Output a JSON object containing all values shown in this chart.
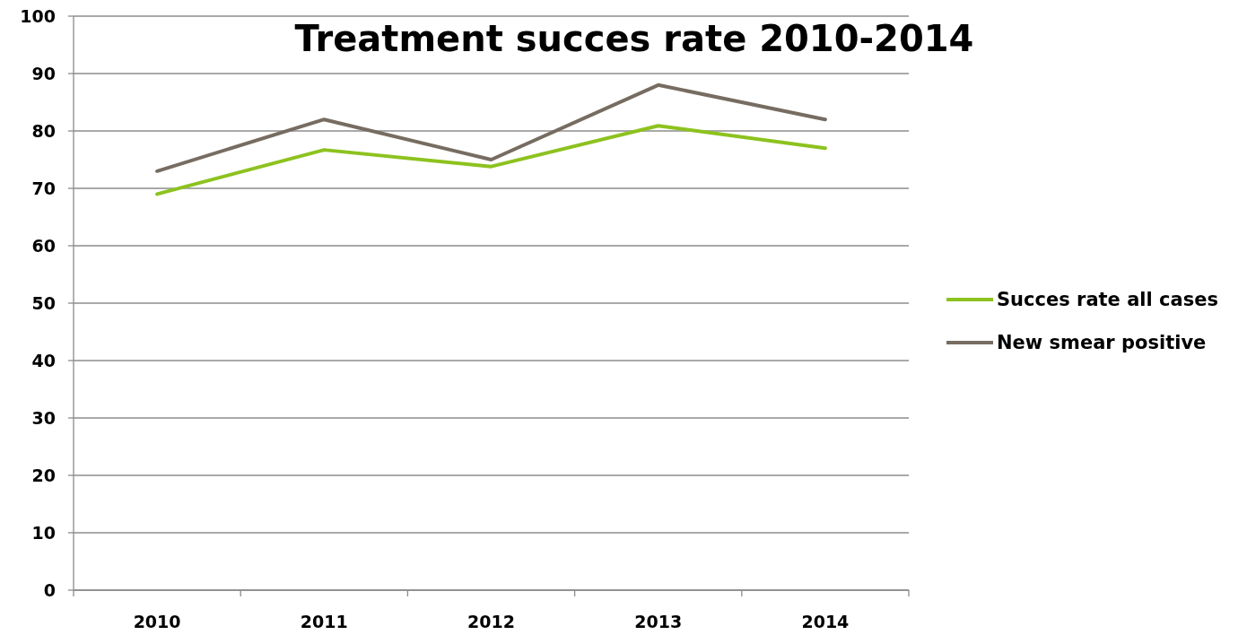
{
  "chart_data": {
    "type": "line",
    "title": "Treatment succes rate 2010-2014",
    "categories": [
      "2010",
      "2011",
      "2012",
      "2013",
      "2014"
    ],
    "series": [
      {
        "name": "Succes rate all cases",
        "color": "#8dc21f",
        "values": [
          69,
          76.7,
          73.8,
          80.9,
          77
        ]
      },
      {
        "name": "New smear positive",
        "color": "#776c61",
        "values": [
          73,
          82,
          75,
          88,
          82
        ]
      }
    ],
    "ylim": [
      0,
      100
    ],
    "yticks": [
      0,
      10,
      20,
      30,
      40,
      50,
      60,
      70,
      80,
      90,
      100
    ],
    "grid": "y",
    "legend": "right",
    "marker": "none",
    "line_style": "solid"
  }
}
